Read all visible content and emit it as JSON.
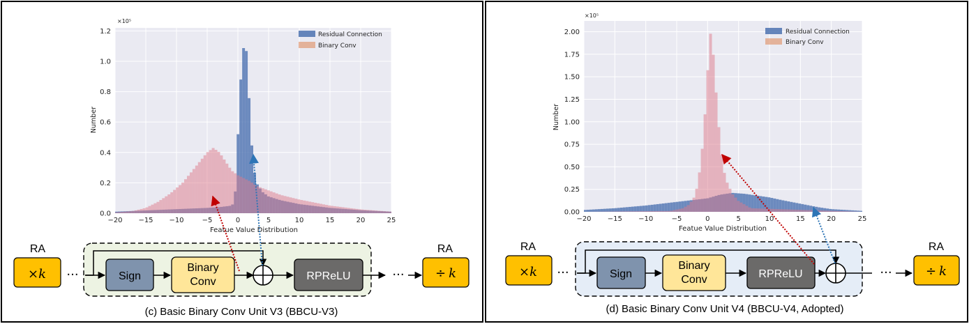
{
  "panels": [
    {
      "caption": "(c) Basic Binary Conv Unit V3 (BBCU-V3)",
      "chart_data": {
        "type": "bar",
        "multiplier": "×10⁵",
        "xlabel": "Featue Value Distribution",
        "ylabel": "Number",
        "xlim": [
          -20,
          25
        ],
        "ylim": [
          0,
          1.22
        ],
        "xticks": [
          -20,
          -15,
          -10,
          -5,
          0,
          5,
          10,
          15,
          20,
          25
        ],
        "yticks": [
          0.0,
          0.2,
          0.4,
          0.6,
          0.8,
          1.0,
          1.2
        ],
        "ytick_labels": [
          "0.0",
          "0.2",
          "0.4",
          "0.6",
          "0.8",
          "1.0",
          "1.2"
        ],
        "grid": true,
        "legend_position": "top-right",
        "series": [
          {
            "name": "Residual Connection",
            "color": "#4c72b0",
            "x": [
              -20,
              -17,
              -14,
              -11,
              -8,
              -5,
              -3,
              -2,
              -1,
              -0.5,
              0,
              0.5,
              1,
              1.5,
              2,
              2.5,
              3,
              4,
              5,
              7,
              10,
              15,
              20,
              25
            ],
            "values": [
              0.01,
              0.015,
              0.02,
              0.025,
              0.03,
              0.035,
              0.04,
              0.045,
              0.05,
              0.08,
              0.5,
              0.9,
              1.12,
              1.05,
              0.6,
              0.32,
              0.2,
              0.14,
              0.11,
              0.085,
              0.06,
              0.035,
              0.02,
              0.01
            ]
          },
          {
            "name": "Binary Conv",
            "color": "#dd8452",
            "x": [
              -20,
              -17,
              -15,
              -13,
              -11,
              -9,
              -7,
              -5,
              -4,
              -3,
              -2,
              -1,
              0,
              1,
              2,
              3,
              5,
              7,
              10,
              15,
              20,
              25
            ],
            "values": [
              0.005,
              0.015,
              0.035,
              0.075,
              0.13,
              0.2,
              0.3,
              0.4,
              0.43,
              0.4,
              0.34,
              0.28,
              0.25,
              0.23,
              0.21,
              0.18,
              0.15,
              0.12,
              0.09,
              0.05,
              0.025,
              0.01
            ]
          }
        ]
      },
      "diagram": {
        "ra_left_label": "RA",
        "ra_left_op_prefix": "×",
        "ra_left_op_var": "k",
        "sign": "Sign",
        "binary_conv_line1": "Binary",
        "binary_conv_line2": "Conv",
        "rprelu": "RPReLU",
        "plus_symbol": "⊕",
        "ra_right_label": "RA",
        "ra_right_op_prefix": "÷",
        "ra_right_op_var": "k",
        "ellipsis": "···"
      },
      "colors": {
        "diagram_bg": "#edf3e3",
        "sign": "#7f93ad",
        "binary_conv": "#ffe699",
        "rprelu": "#6b6a69",
        "ra": "#ffc000"
      }
    },
    {
      "caption": "(d) Basic Binary Conv Unit V4 (BBCU-V4, Adopted)",
      "chart_data": {
        "type": "bar",
        "multiplier": "×10⁵",
        "xlabel": "Featue Value Distribution",
        "ylabel": "Number",
        "xlim": [
          -20,
          25
        ],
        "ylim": [
          0,
          2.12
        ],
        "xticks": [
          -20,
          -15,
          -10,
          -5,
          0,
          5,
          10,
          15,
          20,
          25
        ],
        "yticks": [
          0.0,
          0.25,
          0.5,
          0.75,
          1.0,
          1.25,
          1.5,
          1.75,
          2.0
        ],
        "ytick_labels": [
          "0.00",
          "0.25",
          "0.50",
          "0.75",
          "1.00",
          "1.25",
          "1.50",
          "1.75",
          "2.00"
        ],
        "grid": true,
        "legend_position": "top-right",
        "series": [
          {
            "name": "Residual Connection",
            "color": "#4c72b0",
            "x": [
              -20,
              -15,
              -10,
              -5,
              0,
              2,
              4,
              6,
              8,
              10,
              12,
              15,
              18,
              20,
              25
            ],
            "values": [
              0.02,
              0.04,
              0.07,
              0.11,
              0.15,
              0.19,
              0.21,
              0.2,
              0.18,
              0.16,
              0.13,
              0.09,
              0.05,
              0.03,
              0.01
            ]
          },
          {
            "name": "Binary Conv",
            "color": "#dd8452",
            "x": [
              -20,
              -6,
              -4,
              -3,
              -2,
              -1.5,
              -1,
              -0.5,
              0,
              0.5,
              1,
              1.5,
              2,
              2.5,
              3,
              4,
              5,
              7,
              25
            ],
            "values": [
              0.0,
              0.01,
              0.04,
              0.08,
              0.18,
              0.35,
              0.6,
              1.0,
              1.55,
              2.0,
              1.7,
              1.2,
              0.8,
              0.5,
              0.35,
              0.2,
              0.12,
              0.04,
              0.0
            ]
          }
        ]
      },
      "diagram": {
        "ra_left_label": "RA",
        "ra_left_op_prefix": "×",
        "ra_left_op_var": "k",
        "sign": "Sign",
        "binary_conv_line1": "Binary",
        "binary_conv_line2": "Conv",
        "rprelu": "RPReLU",
        "plus_symbol": "⊕",
        "ra_right_label": "RA",
        "ra_right_op_prefix": "÷",
        "ra_right_op_var": "k",
        "ellipsis": "···"
      },
      "colors": {
        "diagram_bg": "#e5edf7",
        "sign": "#7f93ad",
        "binary_conv": "#ffe699",
        "rprelu": "#6b6a69",
        "ra": "#ffc000"
      }
    }
  ]
}
